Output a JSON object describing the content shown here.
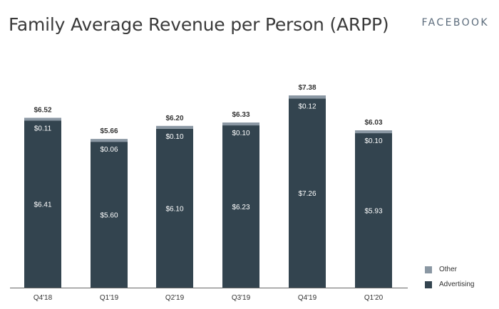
{
  "header": {
    "title": "Family Average Revenue per Person (ARPP)",
    "brand": "FACEBOOK"
  },
  "colors": {
    "advertising": "#33444f",
    "other": "#8a97a3",
    "axis": "#666666"
  },
  "chart_data": {
    "type": "bar",
    "stacked": true,
    "title": "Family Average Revenue per Person (ARPP)",
    "categories": [
      "Q4'18",
      "Q1'19",
      "Q2'19",
      "Q3'19",
      "Q4'19",
      "Q1'20"
    ],
    "series": [
      {
        "name": "Advertising",
        "values": [
          6.41,
          5.6,
          6.1,
          6.23,
          7.26,
          5.93
        ],
        "labels": [
          "$6.41",
          "$5.60",
          "$6.10",
          "$6.23",
          "$7.26",
          "$5.93"
        ]
      },
      {
        "name": "Other",
        "values": [
          0.11,
          0.06,
          0.1,
          0.1,
          0.12,
          0.1
        ],
        "labels": [
          "$0.11",
          "$0.06",
          "$0.10",
          "$0.10",
          "$0.12",
          "$0.10"
        ]
      }
    ],
    "totals": [
      6.52,
      5.66,
      6.2,
      6.33,
      7.38,
      6.03
    ],
    "total_labels": [
      "$6.52",
      "$5.66",
      "$6.20",
      "$6.33",
      "$7.38",
      "$6.03"
    ],
    "ylim": [
      0,
      7.5
    ],
    "grid": false,
    "legend": "bottom-right"
  }
}
